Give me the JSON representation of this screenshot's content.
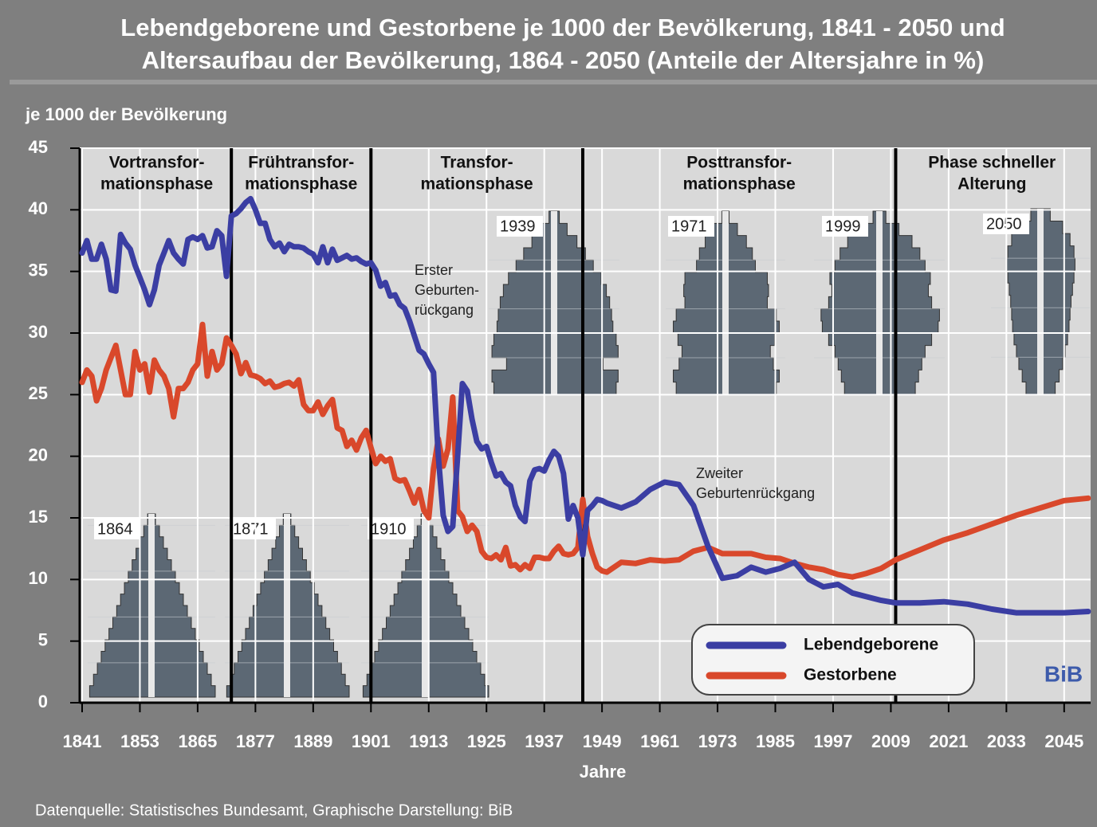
{
  "chart_data": {
    "type": "line",
    "title": [
      "Lebendgeborene und Gestorbene je 1000 der Bevölkerung, 1841 - 2050 und",
      "Altersaufbau der Bevölkerung, 1864 - 2050 (Anteile der Altersjahre in %)"
    ],
    "y_label": "je 1000 der Bevölkerung",
    "x_label": "Jahre",
    "source": "Datenquelle: Statistisches Bundesamt, Graphische Darstellung: BiB",
    "logo": "BiB",
    "xlim": [
      1841,
      2050
    ],
    "ylim": [
      0,
      45
    ],
    "xticks": [
      1841,
      1853,
      1865,
      1877,
      1889,
      1901,
      1913,
      1925,
      1937,
      1949,
      1961,
      1973,
      1985,
      1997,
      2009,
      2021,
      2033,
      2045
    ],
    "yticks": [
      0,
      5,
      10,
      15,
      20,
      25,
      30,
      35,
      40,
      45
    ],
    "grid": true,
    "legend": "lower right",
    "phase_boundaries": [
      1872,
      1901,
      1945,
      2010
    ],
    "phases": [
      {
        "label": [
          "Vortransfor-",
          "mationsphase"
        ]
      },
      {
        "label": [
          "Frühtransfor-",
          "mationsphase"
        ]
      },
      {
        "label": [
          "Transfor-",
          "mationsphase"
        ]
      },
      {
        "label": [
          "Posttransfor-",
          "mationsphase"
        ]
      },
      {
        "label": [
          "Phase schneller",
          "Alterung"
        ]
      }
    ],
    "annotations": [
      {
        "lines": [
          "Erster",
          "Geburten-",
          "rückgang"
        ]
      },
      {
        "lines": [
          "Zweiter",
          "Geburtenrückgang"
        ]
      }
    ],
    "pyramids": [
      1864,
      1871,
      1910,
      1939,
      1971,
      1999,
      2050
    ],
    "x": [
      1841,
      1842,
      1843,
      1844,
      1845,
      1846,
      1847,
      1848,
      1849,
      1850,
      1851,
      1852,
      1853,
      1854,
      1855,
      1856,
      1857,
      1858,
      1859,
      1860,
      1861,
      1862,
      1863,
      1864,
      1865,
      1866,
      1867,
      1868,
      1869,
      1870,
      1871,
      1872,
      1873,
      1874,
      1875,
      1876,
      1877,
      1878,
      1879,
      1880,
      1881,
      1882,
      1883,
      1884,
      1885,
      1886,
      1887,
      1888,
      1889,
      1890,
      1891,
      1892,
      1893,
      1894,
      1895,
      1896,
      1897,
      1898,
      1899,
      1900,
      1901,
      1902,
      1903,
      1904,
      1905,
      1906,
      1907,
      1908,
      1909,
      1910,
      1911,
      1912,
      1913,
      1914,
      1915,
      1916,
      1917,
      1918,
      1919,
      1920,
      1921,
      1922,
      1923,
      1924,
      1925,
      1926,
      1927,
      1928,
      1929,
      1930,
      1931,
      1932,
      1933,
      1934,
      1935,
      1936,
      1937,
      1938,
      1939,
      1940,
      1941,
      1942,
      1943,
      1944,
      1945,
      1946,
      1947,
      1948,
      1949,
      1950,
      1953,
      1956,
      1959,
      1962,
      1965,
      1968,
      1971,
      1974,
      1977,
      1980,
      1983,
      1986,
      1989,
      1992,
      1995,
      1998,
      2001,
      2004,
      2007,
      2010,
      2015,
      2020,
      2025,
      2030,
      2035,
      2040,
      2045,
      2050
    ],
    "series": [
      {
        "name": "Lebendgeborene",
        "color": "#3b3ea3",
        "values": [
          36.5,
          37.5,
          36,
          36,
          37.2,
          36,
          33.5,
          33.4,
          38,
          37.3,
          36.8,
          35.5,
          34.5,
          33.5,
          32.3,
          33.5,
          35.5,
          36.5,
          37.5,
          36.5,
          36,
          35.6,
          37.6,
          37.8,
          37.6,
          37.9,
          36.9,
          37,
          38.3,
          37.9,
          34.6,
          39.5,
          39.7,
          40.1,
          40.6,
          40.9,
          40,
          38.9,
          38.9,
          37.6,
          37,
          37.3,
          36.6,
          37.2,
          37,
          37,
          36.9,
          36.6,
          36.4,
          35.7,
          37,
          35.7,
          36.8,
          35.9,
          36.1,
          36.3,
          36,
          36.1,
          35.8,
          35.6,
          35.7,
          35.1,
          33.8,
          34.1,
          33,
          33.1,
          32.3,
          32,
          31,
          29.8,
          28.6,
          28.3,
          27.5,
          26.8,
          20,
          15.2,
          13.9,
          14.3,
          20,
          25.9,
          25.3,
          23,
          21.2,
          20.6,
          20.8,
          19.5,
          18.4,
          18.6,
          17.9,
          17.6,
          16,
          15.1,
          14.7,
          18,
          18.9,
          19,
          18.8,
          19.7,
          20.4,
          20,
          18.6,
          14.9,
          16,
          15,
          12,
          15.6,
          16,
          16.5,
          16.4,
          16.2,
          15.8,
          16.3,
          17.3,
          17.9,
          17.7,
          16,
          12.7,
          10.1,
          10.3,
          11,
          10.6,
          10.9,
          11.4,
          10,
          9.4,
          9.6,
          8.9,
          8.6,
          8.3,
          8.1,
          8.1,
          8.2,
          8,
          7.6,
          7.3,
          7.3,
          7.3,
          7.4
        ]
      },
      {
        "name": "Gestorbene",
        "color": "#d9482b",
        "values": [
          26,
          27,
          26.5,
          24.5,
          25.5,
          27,
          28,
          29,
          27,
          25,
          25,
          28.5,
          27,
          27.5,
          25.2,
          27.8,
          27,
          26.5,
          25.5,
          23.2,
          25.5,
          25.5,
          26,
          27,
          27.5,
          30.7,
          26.5,
          28.5,
          27,
          27.5,
          29.6,
          29,
          28.3,
          26.7,
          27.6,
          26.6,
          26.5,
          26.3,
          25.9,
          26.1,
          25.6,
          25.7,
          25.9,
          26,
          25.7,
          26.2,
          24.2,
          23.7,
          23.7,
          24.4,
          23.4,
          24.1,
          24.6,
          22.3,
          22.1,
          20.8,
          21.3,
          20.5,
          21.5,
          22.1,
          20.7,
          19.4,
          20,
          19.6,
          19.8,
          18.2,
          18,
          18.1,
          17.2,
          16.2,
          17.3,
          15.6,
          15,
          19,
          21.4,
          19.2,
          20.6,
          24.8,
          15.6,
          15.1,
          13.9,
          14.4,
          13.9,
          12.3,
          11.8,
          11.7,
          12,
          11.6,
          12.6,
          11.1,
          11.2,
          10.8,
          11.2,
          10.9,
          11.8,
          11.8,
          11.7,
          11.7,
          12.3,
          12.7,
          12.1,
          12,
          12.1,
          12.6,
          16.5,
          13.5,
          12.1,
          11,
          10.7,
          10.6,
          11.4,
          11.3,
          11.6,
          11.5,
          11.6,
          12.3,
          12.6,
          12.1,
          12.1,
          12.1,
          11.8,
          11.7,
          11.3,
          11,
          10.8,
          10.4,
          10.2,
          10.5,
          10.9,
          11.6,
          12.4,
          13.2,
          13.8,
          14.5,
          15.2,
          15.8,
          16.4,
          16.6
        ]
      }
    ]
  }
}
